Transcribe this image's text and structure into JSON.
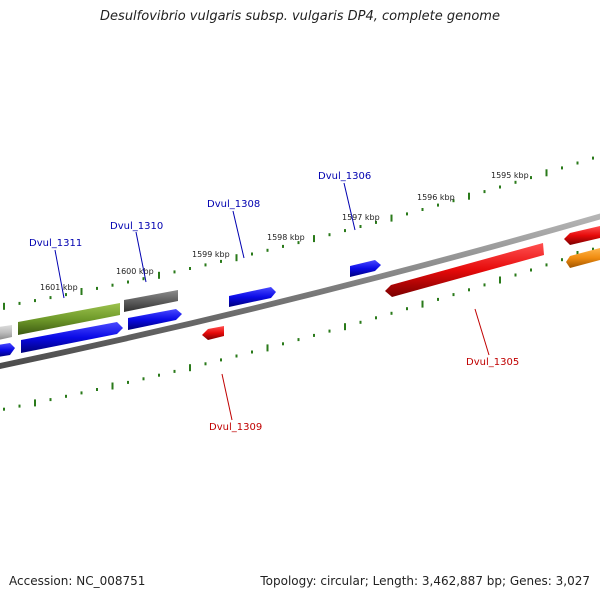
{
  "title": "Desulfovibrio vulgaris subsp. vulgaris DP4, complete genome",
  "footer": {
    "accession": "Accession: NC_008751",
    "summary": "Topology: circular; Length: 3,462,887 bp; Genes: 3,027"
  },
  "scale": {
    "tick_color": "#2a7a1a",
    "labels": [
      "1601 kbp",
      "1600 kbp",
      "1599 kbp",
      "1598 kbp",
      "1597 kbp",
      "1596 kbp",
      "1595 kbp"
    ]
  },
  "gene_labels": [
    {
      "text": "Dvul_1311",
      "color": "#0000b0"
    },
    {
      "text": "Dvul_1310",
      "color": "#0000b0"
    },
    {
      "text": "Dvul_1308",
      "color": "#0000b0"
    },
    {
      "text": "Dvul_1306",
      "color": "#0000b0"
    },
    {
      "text": "Dvul_1309",
      "color": "#c00000"
    },
    {
      "text": "Dvul_1305",
      "color": "#c00000"
    }
  ],
  "colors": {
    "forward_strand": "#0a0ae6",
    "reverse_strand": "#e60a0a",
    "olive_feature": "#6f9a2a",
    "gray_feature": "#6a6a6a",
    "light_gray_feature": "#bdbdbd",
    "orange_feature": "#f08c10",
    "backbone": "#8a8a8a"
  }
}
